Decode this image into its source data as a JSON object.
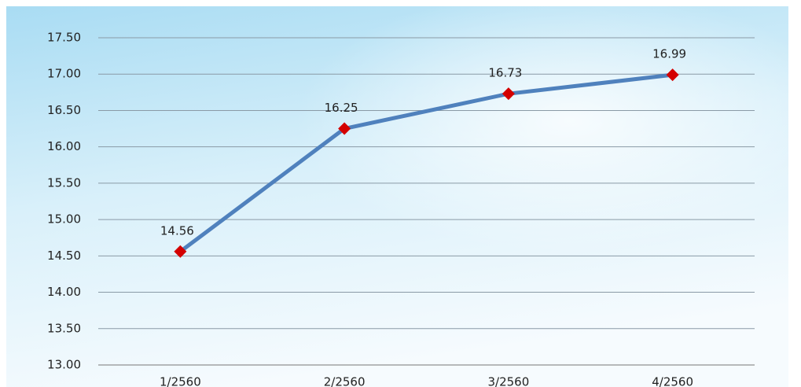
{
  "chart_data": {
    "type": "line",
    "categories": [
      "1/2560",
      "2/2560",
      "3/2560",
      "4/2560"
    ],
    "series": [
      {
        "color": "#4f81bd",
        "marker_color": "#d40000",
        "values": [
          14.56,
          16.25,
          16.73,
          16.99
        ]
      }
    ],
    "ylim": [
      13,
      17.5
    ],
    "yticks": [
      {
        "value": 13,
        "label": "13.00"
      },
      {
        "value": 13.5,
        "label": "13.50"
      },
      {
        "value": 14,
        "label": "14.00"
      },
      {
        "value": 14.5,
        "label": "14.50"
      },
      {
        "value": 15,
        "label": "15.00"
      },
      {
        "value": 15.5,
        "label": "15.50"
      },
      {
        "value": 16,
        "label": "16.00"
      },
      {
        "value": 16.5,
        "label": "16.50"
      },
      {
        "value": 17,
        "label": "17.00"
      },
      {
        "value": 17.5,
        "label": "17.50"
      }
    ],
    "grid": true
  }
}
